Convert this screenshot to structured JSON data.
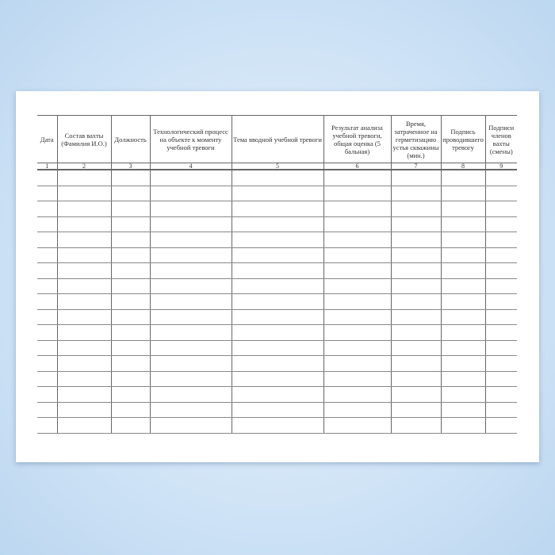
{
  "table": {
    "headers": [
      "Дата",
      "Состав вахты (Фамилия И.О.)",
      "Должность",
      "Технологический процесс на объекте к моменту учебной тревоги",
      "Тема вводной учебной тревоги",
      "Результат анализа учебной тревоги, общая оценка (5 бальная)",
      "Время, затраченное на герметизацию устья скважины (мин.)",
      "Подпись проводившего тревогу",
      "Подписи членов вахты (смены)"
    ],
    "column_numbers": [
      "1",
      "2",
      "3",
      "4",
      "5",
      "6",
      "7",
      "8",
      "9"
    ],
    "empty_rows": 17
  }
}
